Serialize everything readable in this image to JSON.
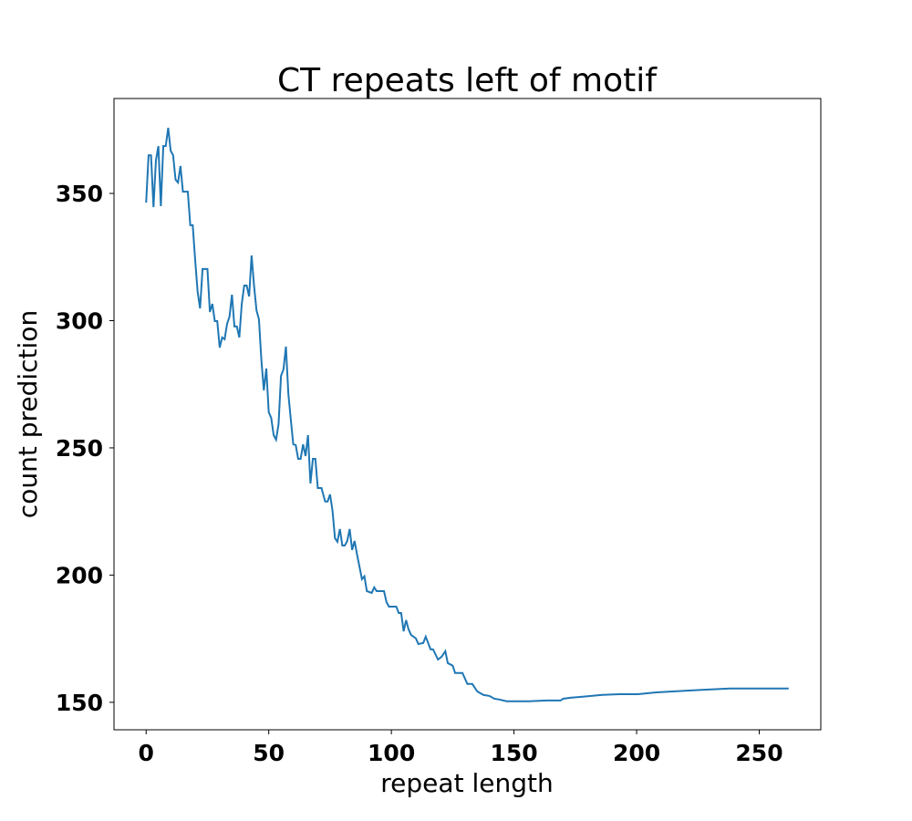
{
  "chart_data": {
    "type": "line",
    "title": "CT repeats left of motif",
    "xlabel": "repeat length",
    "ylabel": "count prediction",
    "color": "#1f77b4",
    "x": [
      0,
      1,
      2,
      3,
      4,
      5,
      6,
      7,
      8,
      9,
      10,
      11,
      12,
      13,
      14,
      15,
      17,
      18,
      19,
      20,
      21,
      22,
      23,
      25,
      26,
      27,
      28,
      29,
      30,
      31,
      32,
      33,
      34,
      35,
      36,
      37,
      38,
      39,
      40,
      41,
      42,
      43,
      44,
      45,
      46,
      47,
      48,
      49,
      50,
      51,
      52,
      53,
      54,
      55,
      56,
      57,
      58,
      59,
      60,
      61,
      62,
      63,
      64,
      65,
      66,
      67,
      68,
      69,
      70,
      71.5,
      73,
      74,
      75,
      76,
      77,
      78,
      79,
      80,
      81,
      82,
      83,
      84,
      85,
      86,
      88,
      89,
      90,
      92,
      93,
      94,
      97,
      98,
      99,
      102,
      103,
      104,
      105,
      106,
      107,
      108,
      110,
      111,
      113,
      114,
      116,
      117,
      119,
      120.5,
      122,
      123,
      125,
      126,
      129,
      131,
      133,
      135,
      137.5,
      140,
      142,
      144,
      147,
      156,
      163.5,
      169,
      170,
      173,
      178,
      186,
      193,
      200.5,
      208,
      223,
      238,
      262
    ],
    "values": [
      346.4,
      365,
      365,
      344.6,
      363,
      368.6,
      345,
      368.6,
      368.6,
      375.8,
      366.8,
      365,
      355.4,
      354.3,
      360.8,
      350.7,
      350.7,
      337.5,
      337.5,
      323.8,
      311.3,
      304.8,
      320.3,
      320.3,
      303.4,
      306.6,
      299.8,
      299.8,
      289.4,
      293.4,
      292.7,
      298.7,
      301.6,
      310.2,
      297.7,
      297.7,
      293.4,
      306.6,
      313.8,
      313.8,
      309.5,
      325.6,
      313.8,
      304.1,
      300.5,
      284.4,
      272.6,
      281.2,
      264,
      261.8,
      255,
      253.2,
      259.3,
      278.3,
      280.8,
      289.8,
      271.1,
      261.1,
      251.4,
      251.1,
      245.7,
      245.7,
      251.4,
      246.8,
      255,
      236,
      245.7,
      245.7,
      234.2,
      234.2,
      228.9,
      228.9,
      231.7,
      225.3,
      214.5,
      213.1,
      218.1,
      211.6,
      211.6,
      213.4,
      218.1,
      209.9,
      213.4,
      208.1,
      198.4,
      199.5,
      193.7,
      193,
      195.2,
      193.7,
      193.7,
      189.4,
      187.6,
      187.6,
      185.1,
      185.1,
      177.9,
      182.3,
      178.7,
      176.5,
      175.1,
      172.9,
      173.3,
      175.8,
      170.8,
      170.8,
      166.8,
      167.9,
      170.1,
      165.4,
      164.4,
      161.5,
      161.5,
      157.2,
      157.2,
      154.3,
      152.9,
      152.5,
      151.4,
      151.1,
      150.4,
      150.4,
      150.7,
      150.7,
      151.4,
      151.8,
      152.2,
      152.9,
      153.2,
      153.2,
      153.9,
      154.7,
      155.4,
      155.4
    ],
    "xlim": [
      -13.1,
      275.1
    ],
    "xticks": [
      0,
      50,
      100,
      150,
      200,
      250
    ],
    "ylim": [
      139.2,
      387.3
    ],
    "yticks": [
      150,
      200,
      250,
      300,
      350
    ]
  }
}
